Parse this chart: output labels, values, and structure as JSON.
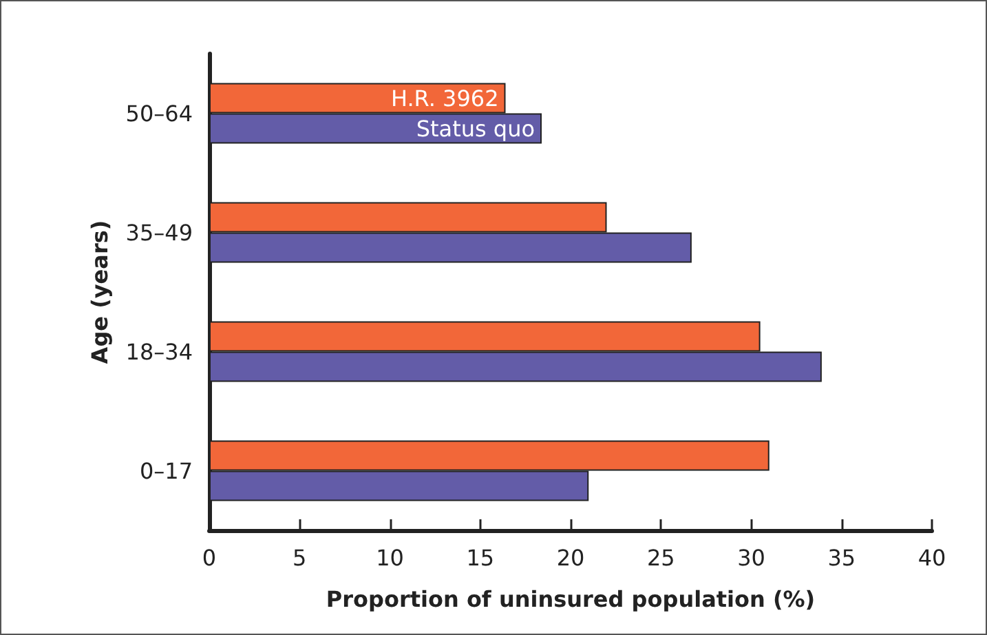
{
  "chart_data": {
    "type": "bar",
    "orientation": "horizontal",
    "xlabel": "Proportion of uninsured population (%)",
    "ylabel": "Age (years)",
    "categories": [
      "50–64",
      "35–49",
      "18–34",
      "0–17"
    ],
    "series": [
      {
        "name": "H.R. 3962",
        "color": "#f26739",
        "values": [
          16.4,
          22.0,
          30.5,
          31.0
        ]
      },
      {
        "name": "Status quo",
        "color": "#635ca8",
        "values": [
          18.4,
          26.7,
          33.9,
          21.0
        ]
      }
    ],
    "xlim": [
      0,
      40
    ],
    "xticks": [
      0,
      5,
      10,
      15,
      20,
      25,
      30,
      35,
      40
    ],
    "grid": false,
    "legend": false
  }
}
